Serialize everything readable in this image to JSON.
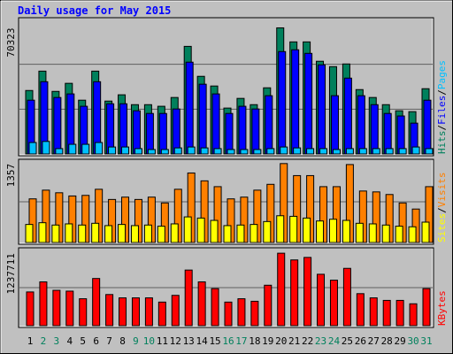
{
  "chart_data": {
    "type": "bar",
    "title": "Daily usage for May 2015",
    "separator": "/",
    "categories": [
      "1",
      "2",
      "3",
      "4",
      "5",
      "6",
      "7",
      "8",
      "9",
      "10",
      "11",
      "12",
      "13",
      "14",
      "15",
      "16",
      "17",
      "18",
      "19",
      "20",
      "21",
      "22",
      "23",
      "24",
      "25",
      "26",
      "27",
      "28",
      "29",
      "30",
      "31"
    ],
    "category_colors": [
      "#000000",
      "#00805c",
      "#00805c",
      "#000000",
      "#000000",
      "#000000",
      "#000000",
      "#000000",
      "#00805c",
      "#00805c",
      "#000000",
      "#000000",
      "#000000",
      "#000000",
      "#000000",
      "#00805c",
      "#00805c",
      "#000000",
      "#000000",
      "#000000",
      "#000000",
      "#000000",
      "#00805c",
      "#00805c",
      "#000000",
      "#000000",
      "#000000",
      "#000000",
      "#000000",
      "#00805c",
      "#00805c"
    ],
    "panels": [
      {
        "ylim": [
          0,
          75000
        ],
        "yticks": [
          70323
        ],
        "series": [
          {
            "name": "Hits",
            "color": "#00805c",
            "values": [
              35400,
              46200,
              34900,
              39400,
              30000,
              46200,
              29500,
              33000,
              27500,
              27500,
              26600,
              31500,
              60000,
              43300,
              37900,
              25600,
              31000,
              27500,
              36900,
              70323,
              62500,
              62500,
              51700,
              48700,
              50200,
              35900,
              31500,
              27500,
              24100,
              23600,
              36400
            ]
          },
          {
            "name": "Files",
            "color": "#0000ff",
            "values": [
              30000,
              40300,
              31500,
              33500,
              26600,
              40300,
              28000,
              28000,
              24100,
              22600,
              22600,
              25100,
              51200,
              38900,
              33500,
              22600,
              26600,
              25100,
              32500,
              57100,
              58100,
              56100,
              49700,
              32500,
              42300,
              32500,
              27500,
              22600,
              21200,
              17200,
              30000
            ]
          },
          {
            "name": "Pages",
            "color": "#00c0ff",
            "values": [
              6400,
              7000,
              3000,
              5400,
              5400,
              6400,
              3900,
              3900,
              3000,
              2500,
              2500,
              3400,
              3900,
              3400,
              3000,
              2500,
              2500,
              2500,
              3000,
              3900,
              3400,
              3000,
              3000,
              2500,
              3000,
              3000,
              3000,
              3000,
              3000,
              3900,
              3000
            ]
          }
        ]
      },
      {
        "ylim": [
          0,
          1400
        ],
        "yticks": [
          1357
        ],
        "series": [
          {
            "name": "Sites",
            "color": "#ffff00",
            "values": [
              310,
              340,
              300,
              320,
              300,
              330,
              290,
              310,
              290,
              300,
              280,
              320,
              440,
              420,
              380,
              290,
              300,
              310,
              360,
              460,
              450,
              420,
              370,
              400,
              380,
              330,
              320,
              300,
              280,
              270,
              350
            ]
          },
          {
            "name": "Visits",
            "color": "#ff8000",
            "values": [
              750,
              900,
              855,
              800,
              810,
              915,
              740,
              780,
              740,
              780,
              680,
              915,
              1195,
              1060,
              960,
              750,
              780,
              900,
              1000,
              1357,
              1150,
              1150,
              960,
              960,
              1340,
              885,
              870,
              825,
              680,
              575,
              960
            ]
          }
        ]
      },
      {
        "ylim": [
          0,
          1300000
        ],
        "yticks": [
          1237711
        ],
        "series": [
          {
            "name": "KBytes",
            "color": "#ff0000",
            "values": [
              576000,
              748000,
              604000,
              590000,
              460000,
              806000,
              532000,
              475000,
              475000,
              475000,
              403000,
              518000,
              950000,
              748000,
              633000,
              403000,
              460000,
              417000,
              691000,
              1237711,
              1123000,
              1166000,
              878000,
              777000,
              979000,
              547000,
              475000,
              432000,
              432000,
              374000,
              633000
            ]
          }
        ]
      }
    ]
  }
}
